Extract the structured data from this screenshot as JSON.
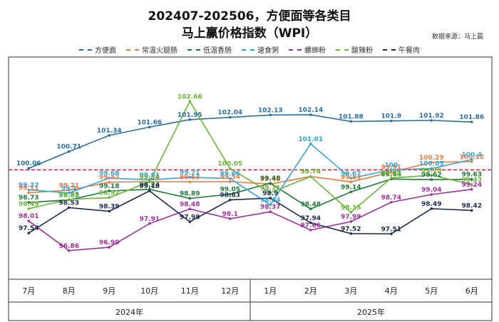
{
  "header": {
    "title_line1": "202407-202506，方便面等各类目",
    "title_line2": "马上赢价格指数（WPI）",
    "source": "数据来源：马上赢"
  },
  "chart_data": {
    "type": "line",
    "categories": [
      "7月",
      "8月",
      "9月",
      "10月",
      "11月",
      "12月",
      "1月",
      "2月",
      "3月",
      "4月",
      "5月",
      "6月"
    ],
    "year_groups": [
      {
        "label": "2024年",
        "span": 6
      },
      {
        "label": "2025年",
        "span": 6
      }
    ],
    "reference_line": 100,
    "reference_color": "#e0261f",
    "ylim": [
      96.3,
      103.0
    ],
    "legend_position": "top",
    "grid": false,
    "series": [
      {
        "name": "方便面",
        "color": "#2a6f9e",
        "values": [
          100.06,
          100.71,
          101.34,
          101.66,
          101.95,
          102.04,
          102.13,
          102.14,
          101.88,
          101.9,
          101.92,
          101.86
        ]
      },
      {
        "name": "常温火腿肠",
        "color": "#ef7b3a",
        "values": [
          99.11,
          99.21,
          99.52,
          99.54,
          99.53,
          99.54,
          99.45,
          99.74,
          99.53,
          99.91,
          100.29,
          100.32
        ]
      },
      {
        "name": "低温香肠",
        "color": "#1f7a3a",
        "values": [
          98.73,
          98.83,
          99.18,
          99.24,
          98.89,
          99.05,
          99.48,
          98.48,
          99.14,
          99.64,
          99.62,
          99.63
        ]
      },
      {
        "name": "速食粥",
        "color": "#35a4d8",
        "values": [
          99.22,
          99.1,
          99.68,
          99.61,
          99.71,
          99.66,
          98.64,
          101.01,
          99.67,
          100.0,
          100.05,
          100.4
        ]
      },
      {
        "name": "螺蛳粉",
        "color": "#a0309a",
        "values": [
          98.01,
          96.86,
          96.99,
          97.91,
          98.48,
          98.1,
          98.37,
          97.66,
          97.99,
          98.74,
          99.04,
          99.24
        ]
      },
      {
        "name": "酸辣粉",
        "color": "#6ab43b",
        "values": [
          98.49,
          98.85,
          98.92,
          99.53,
          102.66,
          100.05,
          99.11,
          99.74,
          98.35,
          99.68,
          99.79,
          99.43
        ]
      },
      {
        "name": "午餐肉",
        "color": "#1f2d4f",
        "values": [
          97.54,
          98.53,
          98.39,
          99.18,
          97.98,
          98.83,
          98.9,
          97.94,
          97.52,
          97.51,
          98.49,
          98.42
        ]
      }
    ]
  }
}
